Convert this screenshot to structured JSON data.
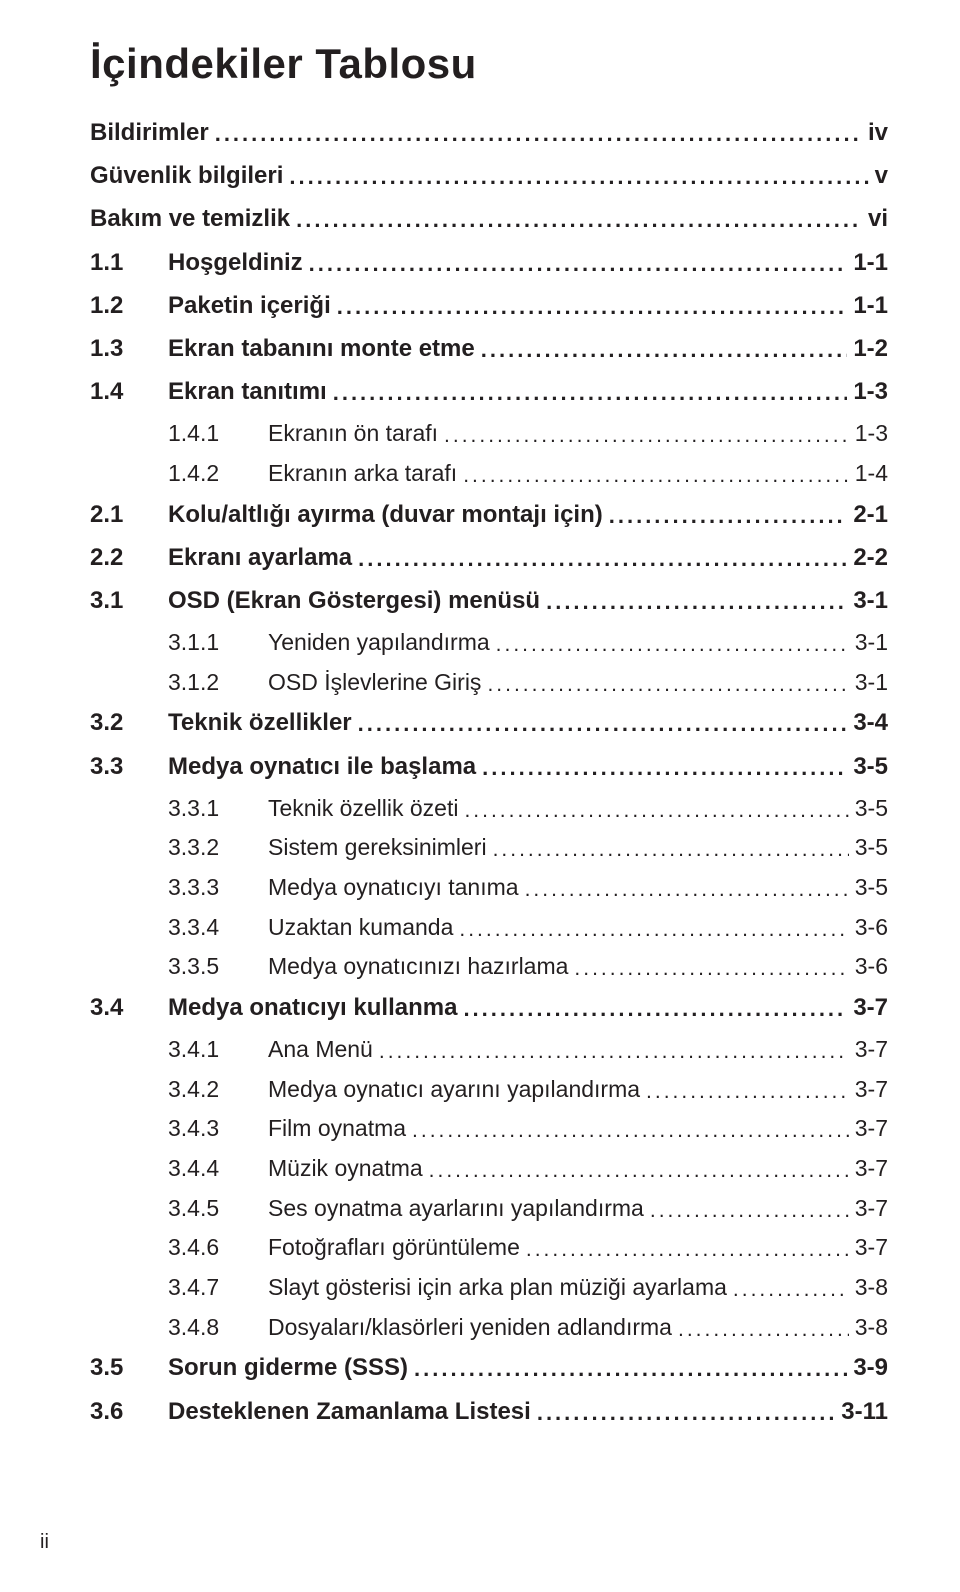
{
  "title": "İçindekiler Tablosu",
  "text_color": "#231f20",
  "background_color": "#ffffff",
  "title_fontsize": 42,
  "entry_fontsize_bold": 24,
  "entry_fontsize_regular": 23,
  "footer_text": "ii",
  "entries": [
    {
      "level": 0,
      "num": "",
      "label": "Bildirimler",
      "page": "iv"
    },
    {
      "level": 0,
      "num": "",
      "label": "Güvenlik bilgileri",
      "page": "v"
    },
    {
      "level": 0,
      "num": "",
      "label": "Bakım ve temizlik",
      "page": "vi"
    },
    {
      "level": 1,
      "num": "1.1",
      "label": "Hoşgeldiniz",
      "page": "1-1"
    },
    {
      "level": 1,
      "num": "1.2",
      "label": "Paketin içeriği",
      "page": "1-1"
    },
    {
      "level": 1,
      "num": "1.3",
      "label": "Ekran tabanını monte etme",
      "page": "1-2"
    },
    {
      "level": 1,
      "num": "1.4",
      "label": "Ekran tanıtımı",
      "page": "1-3"
    },
    {
      "level": 2,
      "num": "1.4.1",
      "label": "Ekranın ön tarafı",
      "page": "1-3"
    },
    {
      "level": 2,
      "num": "1.4.2",
      "label": "Ekranın arka tarafı",
      "page": "1-4"
    },
    {
      "level": 1,
      "num": "2.1",
      "label": "Kolu/altlığı ayırma (duvar montajı için)",
      "page": "2-1"
    },
    {
      "level": 1,
      "num": "2.2",
      "label": "Ekranı ayarlama",
      "page": "2-2"
    },
    {
      "level": 1,
      "num": "3.1",
      "label": "OSD (Ekran Göstergesi) menüsü",
      "page": "3-1"
    },
    {
      "level": 2,
      "num": "3.1.1",
      "label": "Yeniden yapılandırma",
      "page": "3-1"
    },
    {
      "level": 2,
      "num": "3.1.2",
      "label": "OSD İşlevlerine Giriş",
      "page": "3-1"
    },
    {
      "level": 1,
      "num": "3.2",
      "label": "Teknik özellikler",
      "page": "3-4"
    },
    {
      "level": 1,
      "num": "3.3",
      "label": "Medya oynatıcı ile başlama",
      "page": "3-5"
    },
    {
      "level": 2,
      "num": "3.3.1",
      "label": "Teknik özellik özeti",
      "page": "3-5"
    },
    {
      "level": 2,
      "num": "3.3.2",
      "label": "Sistem gereksinimleri",
      "page": "3-5"
    },
    {
      "level": 2,
      "num": "3.3.3",
      "label": "Medya oynatıcıyı tanıma",
      "page": "3-5"
    },
    {
      "level": 2,
      "num": "3.3.4",
      "label": "Uzaktan kumanda",
      "page": "3-6"
    },
    {
      "level": 2,
      "num": "3.3.5",
      "label": "Medya oynatıcınızı hazırlama",
      "page": "3-6"
    },
    {
      "level": 1,
      "num": "3.4",
      "label": "Medya onatıcıyı kullanma",
      "page": "3-7"
    },
    {
      "level": 2,
      "num": "3.4.1",
      "label": "Ana Menü",
      "page": "3-7"
    },
    {
      "level": 2,
      "num": "3.4.2",
      "label": "Medya oynatıcı ayarını yapılandırma",
      "page": "3-7"
    },
    {
      "level": 2,
      "num": "3.4.3",
      "label": "Film oynatma",
      "page": "3-7"
    },
    {
      "level": 2,
      "num": "3.4.4",
      "label": "Müzik oynatma",
      "page": "3-7"
    },
    {
      "level": 2,
      "num": "3.4.5",
      "label": "Ses oynatma ayarlarını yapılandırma",
      "page": "3-7"
    },
    {
      "level": 2,
      "num": "3.4.6",
      "label": "Fotoğrafları görüntüleme",
      "page": "3-7"
    },
    {
      "level": 2,
      "num": "3.4.7",
      "label": "Slayt gösterisi için arka plan müziği ayarlama",
      "page": "3-8"
    },
    {
      "level": 2,
      "num": "3.4.8",
      "label": "Dosyaları/klasörleri yeniden adlandırma",
      "page": "3-8"
    },
    {
      "level": 1,
      "num": "3.5",
      "label": "Sorun giderme (SSS)",
      "page": "3-9"
    },
    {
      "level": 1,
      "num": "3.6",
      "label": "Desteklenen Zamanlama Listesi",
      "page": "3-11"
    }
  ]
}
